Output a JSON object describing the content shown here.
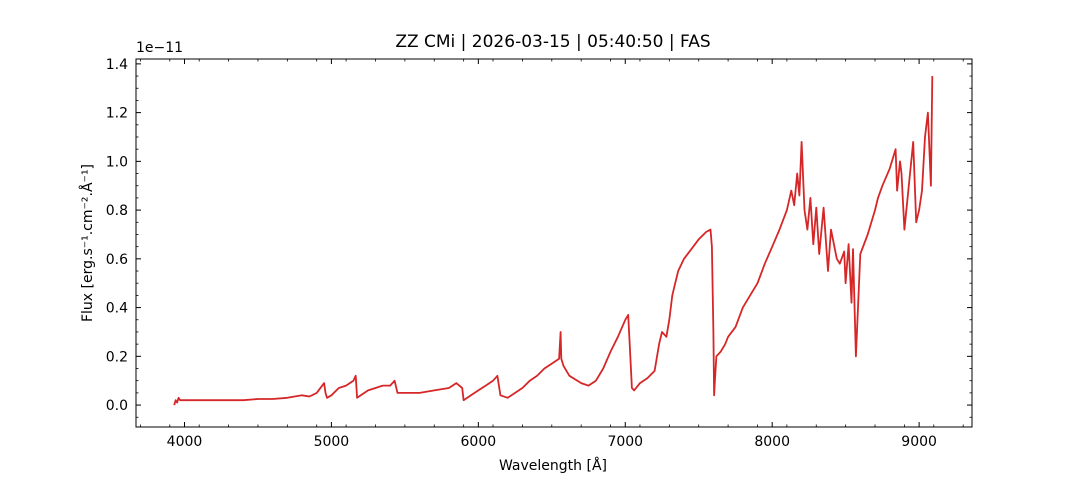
{
  "chart_data": {
    "type": "line",
    "title": "ZZ CMi | 2026-03-15 | 05:40:50 | FAS",
    "xlabel": "Wavelength [Å]",
    "ylabel": "Flux [erg.s⁻¹.cm⁻².Å⁻¹]",
    "y_multiplier_label": "1e−11",
    "xlim": [
      3670,
      9360
    ],
    "ylim": [
      -0.09,
      1.42
    ],
    "xticks": [
      4000,
      5000,
      6000,
      7000,
      8000,
      9000
    ],
    "yticks": [
      0.0,
      0.2,
      0.4,
      0.6,
      0.8,
      1.0,
      1.2,
      1.4
    ],
    "ytick_labels": [
      "0.0",
      "0.2",
      "0.4",
      "0.6",
      "0.8",
      "1.0",
      "1.2",
      "1.4"
    ],
    "grid": false,
    "series": [
      {
        "color": "#d62728",
        "x": [
          3930,
          3940,
          3950,
          3960,
          3970,
          4000,
          4100,
          4200,
          4300,
          4400,
          4500,
          4600,
          4700,
          4800,
          4850,
          4900,
          4950,
          4960,
          4970,
          5000,
          5050,
          5100,
          5150,
          5165,
          5175,
          5200,
          5250,
          5300,
          5350,
          5400,
          5430,
          5450,
          5500,
          5600,
          5700,
          5800,
          5850,
          5890,
          5900,
          5950,
          6000,
          6050,
          6100,
          6130,
          6150,
          6200,
          6250,
          6300,
          6350,
          6400,
          6450,
          6500,
          6550,
          6560,
          6565,
          6580,
          6620,
          6700,
          6750,
          6800,
          6850,
          6900,
          6950,
          7000,
          7020,
          7030,
          7045,
          7060,
          7100,
          7150,
          7200,
          7230,
          7250,
          7280,
          7300,
          7320,
          7340,
          7360,
          7400,
          7450,
          7500,
          7550,
          7580,
          7590,
          7600,
          7605,
          7610,
          7620,
          7650,
          7680,
          7700,
          7750,
          7800,
          7850,
          7900,
          7950,
          8000,
          8050,
          8100,
          8130,
          8150,
          8170,
          8185,
          8200,
          8220,
          8240,
          8260,
          8280,
          8300,
          8320,
          8350,
          8380,
          8400,
          8440,
          8460,
          8490,
          8500,
          8520,
          8540,
          8550,
          8570,
          8600,
          8650,
          8700,
          8720,
          8750,
          8800,
          8840,
          8850,
          8870,
          8880,
          8900,
          8930,
          8960,
          8980,
          9000,
          9020,
          9040,
          9060,
          9080,
          9090
        ],
        "y": [
          0.0,
          0.02,
          0.01,
          0.03,
          0.02,
          0.02,
          0.02,
          0.02,
          0.02,
          0.02,
          0.025,
          0.025,
          0.03,
          0.04,
          0.035,
          0.05,
          0.09,
          0.05,
          0.03,
          0.04,
          0.07,
          0.08,
          0.1,
          0.12,
          0.03,
          0.04,
          0.06,
          0.07,
          0.08,
          0.08,
          0.1,
          0.05,
          0.05,
          0.05,
          0.06,
          0.07,
          0.09,
          0.07,
          0.02,
          0.04,
          0.06,
          0.08,
          0.1,
          0.12,
          0.04,
          0.03,
          0.05,
          0.07,
          0.1,
          0.12,
          0.15,
          0.17,
          0.19,
          0.3,
          0.19,
          0.16,
          0.12,
          0.09,
          0.08,
          0.1,
          0.15,
          0.22,
          0.28,
          0.35,
          0.37,
          0.25,
          0.07,
          0.06,
          0.09,
          0.11,
          0.14,
          0.25,
          0.3,
          0.28,
          0.35,
          0.45,
          0.5,
          0.55,
          0.6,
          0.64,
          0.68,
          0.71,
          0.72,
          0.65,
          0.3,
          0.04,
          0.1,
          0.2,
          0.22,
          0.25,
          0.28,
          0.32,
          0.4,
          0.45,
          0.5,
          0.58,
          0.65,
          0.72,
          0.8,
          0.88,
          0.82,
          0.95,
          0.86,
          1.08,
          0.8,
          0.72,
          0.85,
          0.66,
          0.81,
          0.62,
          0.81,
          0.55,
          0.72,
          0.6,
          0.58,
          0.63,
          0.5,
          0.66,
          0.42,
          0.64,
          0.2,
          0.62,
          0.7,
          0.8,
          0.85,
          0.9,
          0.97,
          1.05,
          0.88,
          1.0,
          0.95,
          0.72,
          0.9,
          1.08,
          0.75,
          0.8,
          0.88,
          1.1,
          1.2,
          0.9,
          1.35
        ]
      }
    ]
  }
}
